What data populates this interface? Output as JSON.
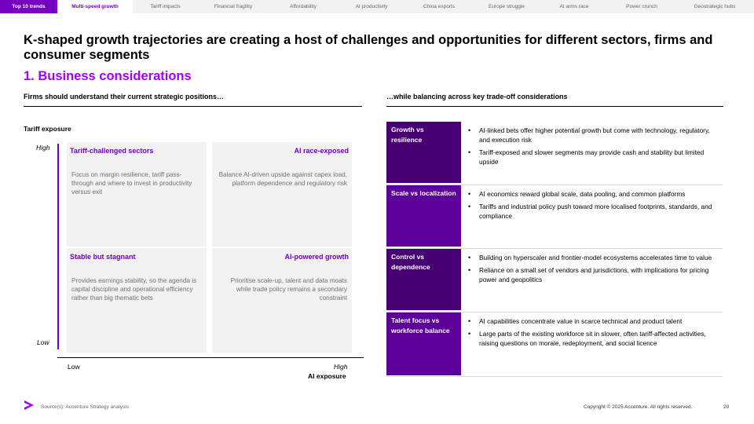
{
  "nav": {
    "tabs": [
      {
        "label": "Top 10 trends"
      },
      {
        "label": "Multi-speed growth"
      },
      {
        "label": "Tariff impacts"
      },
      {
        "label": "Financial fragility"
      },
      {
        "label": "Affordability"
      },
      {
        "label": "AI productivity"
      },
      {
        "label": "China exports"
      },
      {
        "label": "Europe struggle"
      },
      {
        "label": "AI arms race"
      },
      {
        "label": "Power crunch"
      },
      {
        "label": "Geostrategic hubs"
      }
    ]
  },
  "title": "K-shaped growth trajectories are creating a host of challenges and opportunities for different sectors, firms and consumer segments",
  "subtitle": "1. Business considerations",
  "left": {
    "heading": "Firms should understand their current strategic positions…",
    "y_axis_title": "Tariff exposure",
    "y_high": "High",
    "y_low": "Low",
    "x_low": "Low",
    "x_high": "High",
    "x_axis_title": "AI exposure",
    "quadrants": {
      "top_left": {
        "title": "Tariff-challenged sectors",
        "body": "Focus on margin resilience, tariff pass-through and where to invest in productivity versus exit"
      },
      "top_right": {
        "title": "AI race-exposed",
        "body": "Balance AI-driven upside against capex load, platform dependence and regulatory risk"
      },
      "bottom_left": {
        "title": "Stable but stagnant",
        "body": "Provides earnings stability, so the agenda is capital discipline and operational efficiency rather than big thematic bets"
      },
      "bottom_right": {
        "title": "AI-powered growth",
        "body": "Prioritise scale-up, talent and data moats while trade policy remains a secondary constraint"
      }
    }
  },
  "right": {
    "heading": "…while balancing across key trade-off considerations",
    "rows": [
      {
        "label": "Growth vs resilience",
        "bullets": [
          "AI-linked bets offer higher potential growth but come with technology, regulatory, and execution risk",
          "Tariff-exposed and slower segments may provide cash and stability but limited upside"
        ]
      },
      {
        "label": "Scale vs localization",
        "bullets": [
          "AI economics reward global scale, data pooling, and common platforms",
          "Tariffs and industrial policy push toward more localised footprints, standards, and compliance"
        ]
      },
      {
        "label": "Control vs dependence",
        "bullets": [
          "Building on hyperscaler and frontier-model ecosystems accelerates time to value",
          "Reliance on a small set of vendors and jurisdictions, with implications for pricing power and geopolitics"
        ]
      },
      {
        "label": "Talent focus vs workforce balance",
        "bullets": [
          "AI capabilities concentrate value in scarce technical and product talent",
          "Large parts of the existing workforce sit in slower, often tariff-affected activities, raising questions on morale, redeployment, and social licence"
        ]
      }
    ]
  },
  "footer": {
    "source": "Source(s): Accenture Strategy analysis",
    "copyright": "Copyright © 2025 Accenture. All rights reserved.",
    "page": "20"
  },
  "colors": {
    "purple": "#a100ff",
    "dark_purple": "#460073",
    "nav_purple": "#7500c0"
  },
  "icons": {
    "logo": "accenture-chevron-logo"
  }
}
